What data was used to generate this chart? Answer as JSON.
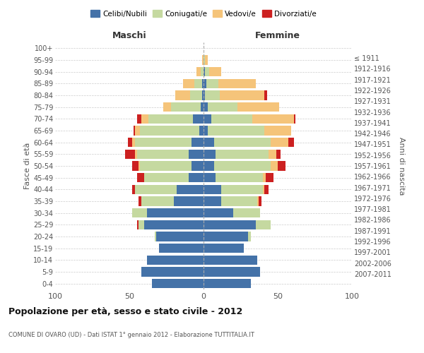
{
  "age_groups": [
    "0-4",
    "5-9",
    "10-14",
    "15-19",
    "20-24",
    "25-29",
    "30-34",
    "35-39",
    "40-44",
    "45-49",
    "50-54",
    "55-59",
    "60-64",
    "65-69",
    "70-74",
    "75-79",
    "80-84",
    "85-89",
    "90-94",
    "95-99",
    "100+"
  ],
  "birth_years": [
    "2007-2011",
    "2002-2006",
    "1997-2001",
    "1992-1996",
    "1987-1991",
    "1982-1986",
    "1977-1981",
    "1972-1976",
    "1967-1971",
    "1962-1966",
    "1957-1961",
    "1952-1956",
    "1947-1951",
    "1942-1946",
    "1937-1941",
    "1932-1936",
    "1927-1931",
    "1922-1926",
    "1917-1921",
    "1912-1916",
    "≤ 1911"
  ],
  "maschi": {
    "celibi": [
      35,
      42,
      38,
      30,
      32,
      40,
      38,
      20,
      18,
      10,
      8,
      10,
      8,
      3,
      7,
      2,
      1,
      1,
      0,
      0,
      0
    ],
    "coniugati": [
      0,
      0,
      0,
      0,
      1,
      4,
      10,
      22,
      28,
      30,
      35,
      35,
      38,
      40,
      30,
      20,
      8,
      5,
      2,
      0,
      0
    ],
    "vedovi": [
      0,
      0,
      0,
      0,
      0,
      0,
      0,
      0,
      0,
      0,
      1,
      1,
      2,
      3,
      5,
      5,
      10,
      8,
      3,
      1,
      0
    ],
    "divorziati": [
      0,
      0,
      0,
      0,
      0,
      1,
      0,
      2,
      2,
      5,
      4,
      7,
      3,
      1,
      3,
      0,
      0,
      0,
      0,
      0,
      0
    ]
  },
  "femmine": {
    "nubili": [
      32,
      38,
      36,
      27,
      30,
      35,
      20,
      12,
      12,
      8,
      7,
      8,
      7,
      3,
      5,
      3,
      1,
      2,
      1,
      0,
      0
    ],
    "coniugate": [
      0,
      0,
      0,
      0,
      2,
      10,
      18,
      24,
      28,
      32,
      38,
      36,
      38,
      38,
      28,
      20,
      10,
      8,
      3,
      1,
      0
    ],
    "vedove": [
      0,
      0,
      0,
      0,
      0,
      0,
      0,
      1,
      1,
      2,
      5,
      5,
      12,
      18,
      28,
      28,
      30,
      25,
      8,
      2,
      0
    ],
    "divorziate": [
      0,
      0,
      0,
      0,
      0,
      0,
      0,
      2,
      3,
      5,
      5,
      3,
      4,
      0,
      1,
      0,
      2,
      0,
      0,
      0,
      0
    ]
  },
  "colors": {
    "celibi": "#4472a8",
    "coniugati": "#c5d9a0",
    "vedovi": "#f5c47a",
    "divorziati": "#cc2020"
  },
  "xlim": 100,
  "title": "Popolazione per età, sesso e stato civile - 2012",
  "subtitle": "COMUNE DI OVARO (UD) - Dati ISTAT 1° gennaio 2012 - Elaborazione TUTTITALIA.IT",
  "ylabel_left": "Fasce di età",
  "ylabel_right": "Anni di nascita",
  "legend_labels": [
    "Celibi/Nubili",
    "Coniugati/e",
    "Vedovi/e",
    "Divorziati/e"
  ]
}
